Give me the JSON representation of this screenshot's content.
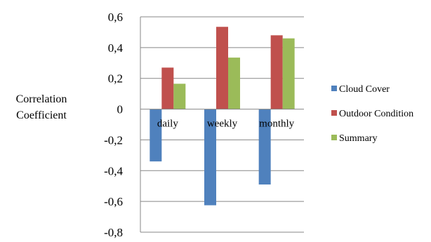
{
  "chart_data": {
    "type": "bar",
    "categories": [
      "daily",
      "weekly",
      "monthly"
    ],
    "series": [
      {
        "name": "Cloud Cover",
        "color": "#4F81BD",
        "values": [
          -0.34,
          -0.625,
          -0.49
        ]
      },
      {
        "name": "Outdoor Condition",
        "color": "#C0504D",
        "values": [
          0.27,
          0.535,
          0.48
        ]
      },
      {
        "name": "Summary",
        "color": "#9BBB59",
        "values": [
          0.165,
          0.335,
          0.46
        ]
      }
    ],
    "ylabel": [
      "Correlation",
      "Coefficient"
    ],
    "ylim": [
      -0.8,
      0.6
    ],
    "yticks": [
      "0,6",
      "0,4",
      "0,2",
      "0",
      "-0,2",
      "-0,4",
      "-0,6",
      "-0,8"
    ],
    "ytick_values": [
      0.6,
      0.4,
      0.2,
      0,
      -0.2,
      -0.4,
      -0.6,
      -0.8
    ],
    "grid": true,
    "legend": "right"
  }
}
